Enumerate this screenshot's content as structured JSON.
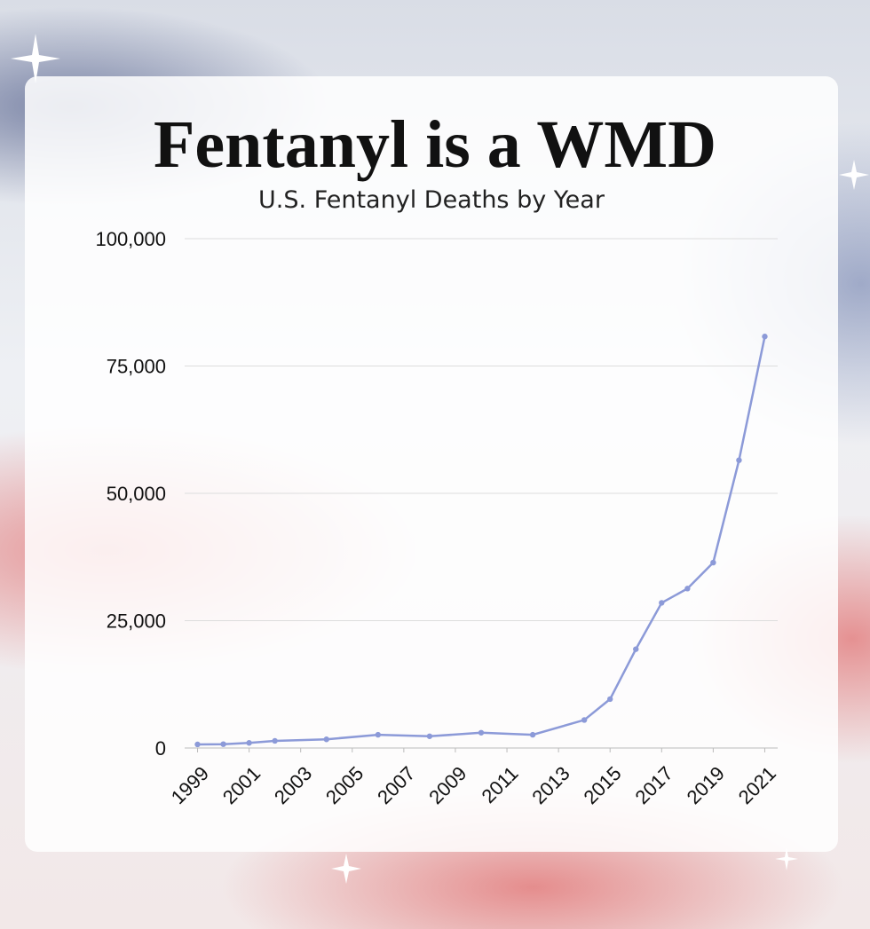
{
  "chart_data": {
    "type": "line",
    "title": "Fentanyl is a WMD",
    "subtitle": "U.S. Fentanyl Deaths by Year",
    "x": [
      1999,
      2000,
      2001,
      2002,
      2004,
      2006,
      2008,
      2010,
      2012,
      2014,
      2015,
      2016,
      2017,
      2018,
      2019,
      2020,
      2021
    ],
    "values": [
      700,
      750,
      1000,
      1400,
      1700,
      2600,
      2300,
      3000,
      2600,
      5500,
      9600,
      19400,
      28500,
      31300,
      36400,
      56500,
      80800
    ],
    "color": "#8c9ad8",
    "xlim": [
      1998.5,
      2021.5
    ],
    "xticks": [
      1999,
      2001,
      2003,
      2005,
      2007,
      2009,
      2011,
      2013,
      2015,
      2017,
      2019,
      2021
    ],
    "ylim": [
      0,
      100000
    ],
    "yticks": [
      0,
      {
        "value": 25000,
        "label": "25,000"
      },
      {
        "value": 50000,
        "label": "50,000"
      },
      {
        "value": 75000,
        "label": "75,000"
      },
      {
        "value": 100000,
        "label": "100,000"
      }
    ],
    "grid": true
  }
}
